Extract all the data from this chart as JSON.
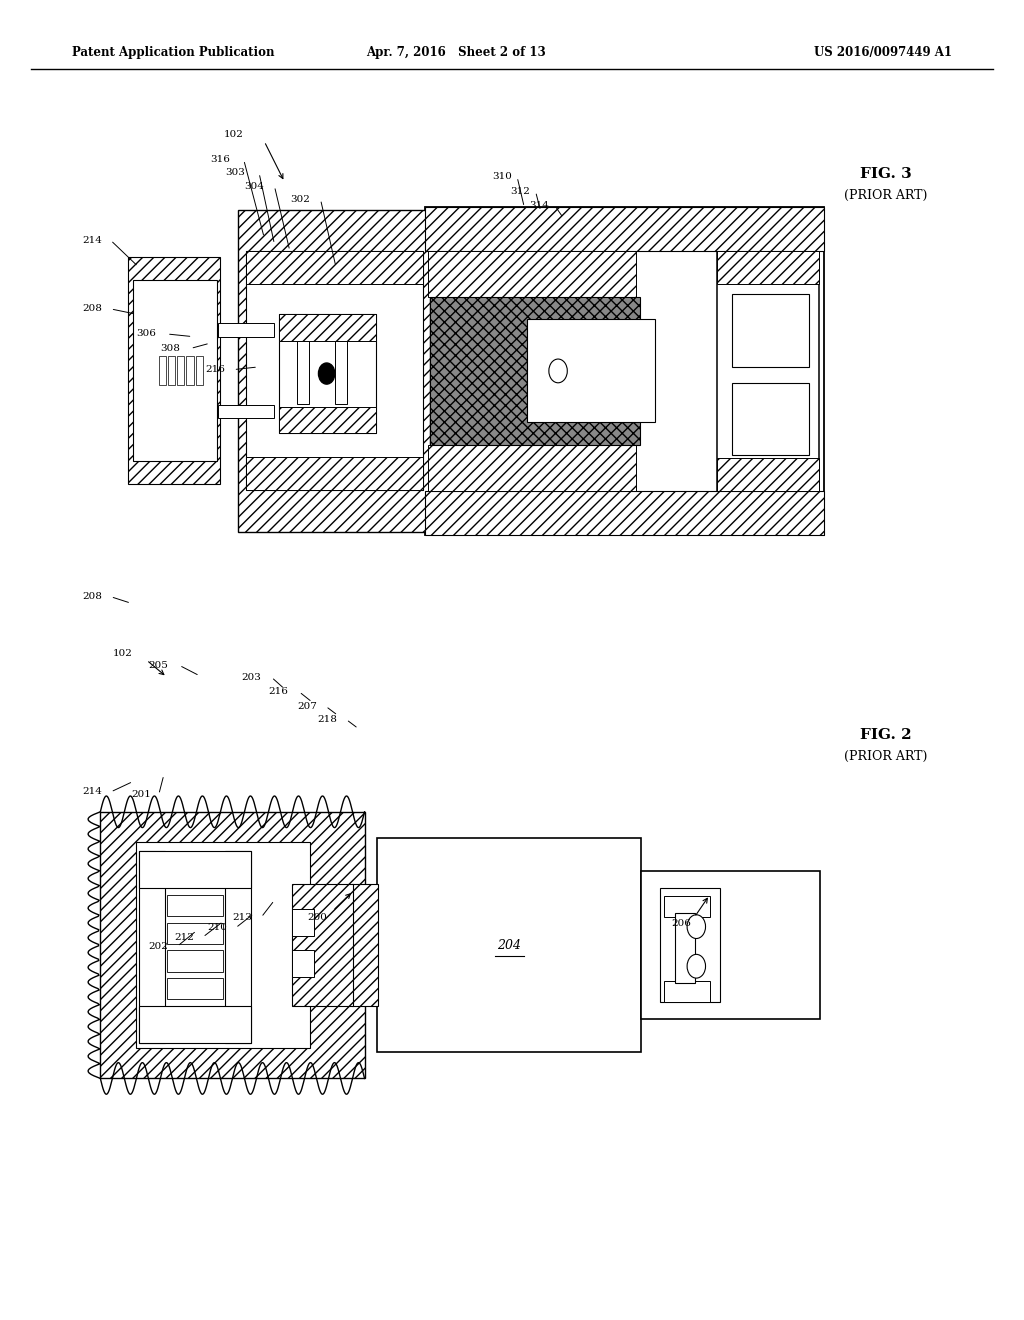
{
  "background_color": "#ffffff",
  "header_left": "Patent Application Publication",
  "header_center": "Apr. 7, 2016   Sheet 2 of 13",
  "header_right": "US 2016/0097449 A1",
  "fig3_label": "FIG. 3",
  "fig3_sublabel": "(PRIOR ART)",
  "fig2_label": "FIG. 2",
  "fig2_sublabel": "(PRIOR ART)",
  "line_color": "#000000",
  "hatch_color": "#000000",
  "text_color": "#000000"
}
